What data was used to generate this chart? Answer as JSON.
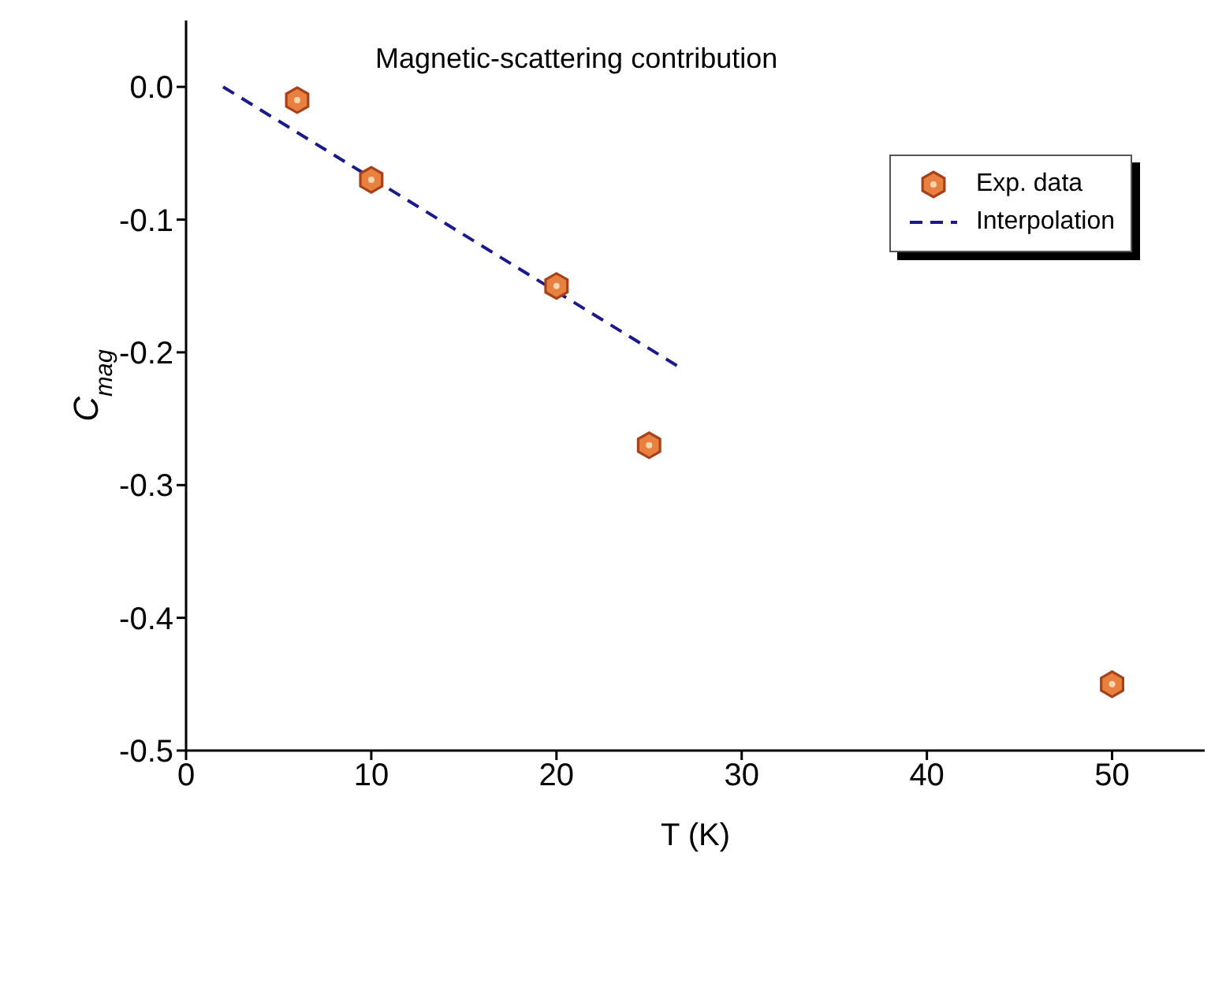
{
  "chart_data": {
    "type": "scatter",
    "title": "Magnetic-scattering contribution",
    "xlabel": "T (K)",
    "ylabel": "C$_{mag}$",
    "x": [
      6,
      10,
      20,
      25,
      50
    ],
    "series": [
      {
        "name": "Exp. data",
        "color": "#e8813f",
        "values": [
          -0.01,
          -0.07,
          -0.15,
          -0.27,
          -0.45
        ]
      },
      {
        "name": "Interpolation",
        "type": "line",
        "color": "#1a1a8c",
        "x": [
          2,
          26.5
        ],
        "values": [
          0,
          -0.21
        ],
        "line_style": "dashed"
      }
    ],
    "xlim": [
      0,
      55
    ],
    "xticks": [
      0,
      10,
      20,
      30,
      40,
      50
    ],
    "ylim": [
      -0.5,
      0.05
    ],
    "yticks": [
      {
        "value": -0.5,
        "label": "-0.5"
      },
      {
        "value": -0.4,
        "label": "-0.4"
      },
      {
        "value": -0.3,
        "label": "-0.3"
      },
      {
        "value": -0.2,
        "label": "-0.2"
      },
      {
        "value": -0.1,
        "label": "-0.1"
      },
      {
        "value": 0,
        "label": "0.0"
      }
    ],
    "legend": "top right",
    "grid": false
  }
}
